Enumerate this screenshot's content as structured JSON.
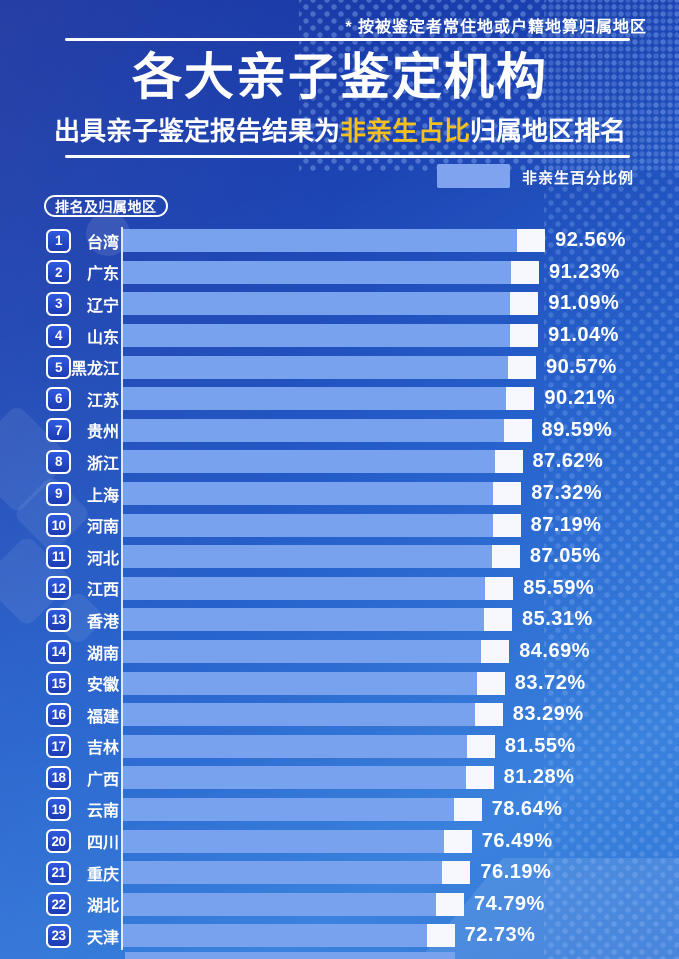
{
  "colors": {
    "background_top": "#15309e",
    "background_bottom": "#3a82dd",
    "bar": "#78a1ee",
    "bar_tip": "#f6f8fd",
    "highlight": "#f5c01e",
    "text": "#ffffff"
  },
  "header": {
    "note": "* 按被鉴定者常住地或户籍地算归属地区",
    "title": "各大亲子鉴定机构",
    "subtitle_prefix": "出具亲子鉴定报告结果为",
    "subtitle_highlight": "非亲生占比",
    "subtitle_suffix": "归属地区排名"
  },
  "legend": {
    "label": "非亲生百分比例"
  },
  "axis_badge": "排名及归属地区",
  "chart_data": {
    "type": "bar",
    "orientation": "horizontal",
    "title": "各大亲子鉴定机构",
    "subtitle": "出具亲子鉴定报告结果为非亲生占比归属地区排名",
    "legend": [
      "非亲生百分比例"
    ],
    "legend_position": "top-right",
    "xlabel": "非亲生百分比例",
    "xlim": [
      0,
      100
    ],
    "value_suffix": "%",
    "grid": false,
    "ranks": [
      1,
      2,
      3,
      4,
      5,
      6,
      7,
      8,
      9,
      10,
      11,
      12,
      13,
      14,
      15,
      16,
      17,
      18,
      19,
      20,
      21,
      22,
      23
    ],
    "categories": [
      "台湾",
      "广东",
      "辽宁",
      "山东",
      "黑龙江",
      "江苏",
      "贵州",
      "浙江",
      "上海",
      "河南",
      "河北",
      "江西",
      "香港",
      "湖南",
      "安徽",
      "福建",
      "吉林",
      "广西",
      "云南",
      "四川",
      "重庆",
      "湖北",
      "天津"
    ],
    "values": [
      92.56,
      91.23,
      91.09,
      91.04,
      90.57,
      90.21,
      89.59,
      87.62,
      87.32,
      87.19,
      87.05,
      85.59,
      85.31,
      84.69,
      83.72,
      83.29,
      81.55,
      81.28,
      78.64,
      76.49,
      76.19,
      74.79,
      72.73
    ]
  }
}
